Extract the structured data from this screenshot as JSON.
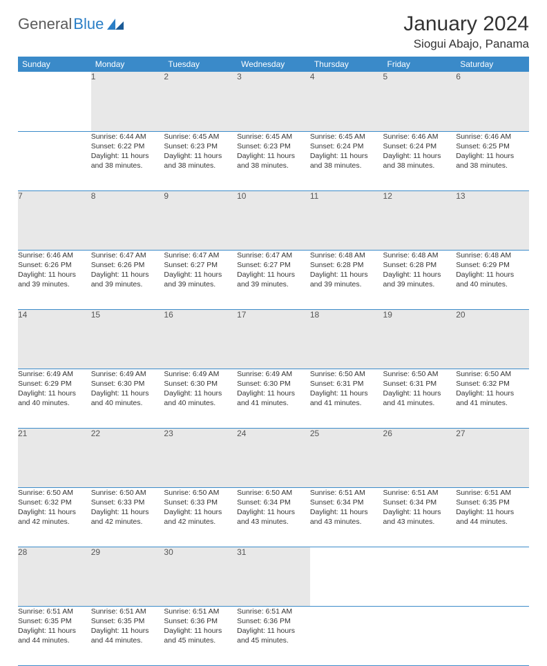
{
  "logo": {
    "text1": "General",
    "text2": "Blue"
  },
  "header": {
    "title": "January 2024",
    "location": "Siogui Abajo, Panama"
  },
  "colors": {
    "header_bg": "#3a8ac9",
    "header_text": "#ffffff",
    "daynum_bg": "#e8e8e8",
    "text": "#333333",
    "logo_gray": "#5a5a5a",
    "logo_blue": "#2a7ec6"
  },
  "weekdays": [
    "Sunday",
    "Monday",
    "Tuesday",
    "Wednesday",
    "Thursday",
    "Friday",
    "Saturday"
  ],
  "weeks": [
    {
      "days": [
        {
          "num": "",
          "lines": [
            "",
            "",
            "",
            ""
          ]
        },
        {
          "num": "1",
          "lines": [
            "Sunrise: 6:44 AM",
            "Sunset: 6:22 PM",
            "Daylight: 11 hours",
            "and 38 minutes."
          ]
        },
        {
          "num": "2",
          "lines": [
            "Sunrise: 6:45 AM",
            "Sunset: 6:23 PM",
            "Daylight: 11 hours",
            "and 38 minutes."
          ]
        },
        {
          "num": "3",
          "lines": [
            "Sunrise: 6:45 AM",
            "Sunset: 6:23 PM",
            "Daylight: 11 hours",
            "and 38 minutes."
          ]
        },
        {
          "num": "4",
          "lines": [
            "Sunrise: 6:45 AM",
            "Sunset: 6:24 PM",
            "Daylight: 11 hours",
            "and 38 minutes."
          ]
        },
        {
          "num": "5",
          "lines": [
            "Sunrise: 6:46 AM",
            "Sunset: 6:24 PM",
            "Daylight: 11 hours",
            "and 38 minutes."
          ]
        },
        {
          "num": "6",
          "lines": [
            "Sunrise: 6:46 AM",
            "Sunset: 6:25 PM",
            "Daylight: 11 hours",
            "and 38 minutes."
          ]
        }
      ]
    },
    {
      "days": [
        {
          "num": "7",
          "lines": [
            "Sunrise: 6:46 AM",
            "Sunset: 6:26 PM",
            "Daylight: 11 hours",
            "and 39 minutes."
          ]
        },
        {
          "num": "8",
          "lines": [
            "Sunrise: 6:47 AM",
            "Sunset: 6:26 PM",
            "Daylight: 11 hours",
            "and 39 minutes."
          ]
        },
        {
          "num": "9",
          "lines": [
            "Sunrise: 6:47 AM",
            "Sunset: 6:27 PM",
            "Daylight: 11 hours",
            "and 39 minutes."
          ]
        },
        {
          "num": "10",
          "lines": [
            "Sunrise: 6:47 AM",
            "Sunset: 6:27 PM",
            "Daylight: 11 hours",
            "and 39 minutes."
          ]
        },
        {
          "num": "11",
          "lines": [
            "Sunrise: 6:48 AM",
            "Sunset: 6:28 PM",
            "Daylight: 11 hours",
            "and 39 minutes."
          ]
        },
        {
          "num": "12",
          "lines": [
            "Sunrise: 6:48 AM",
            "Sunset: 6:28 PM",
            "Daylight: 11 hours",
            "and 39 minutes."
          ]
        },
        {
          "num": "13",
          "lines": [
            "Sunrise: 6:48 AM",
            "Sunset: 6:29 PM",
            "Daylight: 11 hours",
            "and 40 minutes."
          ]
        }
      ]
    },
    {
      "days": [
        {
          "num": "14",
          "lines": [
            "Sunrise: 6:49 AM",
            "Sunset: 6:29 PM",
            "Daylight: 11 hours",
            "and 40 minutes."
          ]
        },
        {
          "num": "15",
          "lines": [
            "Sunrise: 6:49 AM",
            "Sunset: 6:30 PM",
            "Daylight: 11 hours",
            "and 40 minutes."
          ]
        },
        {
          "num": "16",
          "lines": [
            "Sunrise: 6:49 AM",
            "Sunset: 6:30 PM",
            "Daylight: 11 hours",
            "and 40 minutes."
          ]
        },
        {
          "num": "17",
          "lines": [
            "Sunrise: 6:49 AM",
            "Sunset: 6:30 PM",
            "Daylight: 11 hours",
            "and 41 minutes."
          ]
        },
        {
          "num": "18",
          "lines": [
            "Sunrise: 6:50 AM",
            "Sunset: 6:31 PM",
            "Daylight: 11 hours",
            "and 41 minutes."
          ]
        },
        {
          "num": "19",
          "lines": [
            "Sunrise: 6:50 AM",
            "Sunset: 6:31 PM",
            "Daylight: 11 hours",
            "and 41 minutes."
          ]
        },
        {
          "num": "20",
          "lines": [
            "Sunrise: 6:50 AM",
            "Sunset: 6:32 PM",
            "Daylight: 11 hours",
            "and 41 minutes."
          ]
        }
      ]
    },
    {
      "days": [
        {
          "num": "21",
          "lines": [
            "Sunrise: 6:50 AM",
            "Sunset: 6:32 PM",
            "Daylight: 11 hours",
            "and 42 minutes."
          ]
        },
        {
          "num": "22",
          "lines": [
            "Sunrise: 6:50 AM",
            "Sunset: 6:33 PM",
            "Daylight: 11 hours",
            "and 42 minutes."
          ]
        },
        {
          "num": "23",
          "lines": [
            "Sunrise: 6:50 AM",
            "Sunset: 6:33 PM",
            "Daylight: 11 hours",
            "and 42 minutes."
          ]
        },
        {
          "num": "24",
          "lines": [
            "Sunrise: 6:50 AM",
            "Sunset: 6:34 PM",
            "Daylight: 11 hours",
            "and 43 minutes."
          ]
        },
        {
          "num": "25",
          "lines": [
            "Sunrise: 6:51 AM",
            "Sunset: 6:34 PM",
            "Daylight: 11 hours",
            "and 43 minutes."
          ]
        },
        {
          "num": "26",
          "lines": [
            "Sunrise: 6:51 AM",
            "Sunset: 6:34 PM",
            "Daylight: 11 hours",
            "and 43 minutes."
          ]
        },
        {
          "num": "27",
          "lines": [
            "Sunrise: 6:51 AM",
            "Sunset: 6:35 PM",
            "Daylight: 11 hours",
            "and 44 minutes."
          ]
        }
      ]
    },
    {
      "days": [
        {
          "num": "28",
          "lines": [
            "Sunrise: 6:51 AM",
            "Sunset: 6:35 PM",
            "Daylight: 11 hours",
            "and 44 minutes."
          ]
        },
        {
          "num": "29",
          "lines": [
            "Sunrise: 6:51 AM",
            "Sunset: 6:35 PM",
            "Daylight: 11 hours",
            "and 44 minutes."
          ]
        },
        {
          "num": "30",
          "lines": [
            "Sunrise: 6:51 AM",
            "Sunset: 6:36 PM",
            "Daylight: 11 hours",
            "and 45 minutes."
          ]
        },
        {
          "num": "31",
          "lines": [
            "Sunrise: 6:51 AM",
            "Sunset: 6:36 PM",
            "Daylight: 11 hours",
            "and 45 minutes."
          ]
        },
        {
          "num": "",
          "lines": [
            "",
            "",
            "",
            ""
          ]
        },
        {
          "num": "",
          "lines": [
            "",
            "",
            "",
            ""
          ]
        },
        {
          "num": "",
          "lines": [
            "",
            "",
            "",
            ""
          ]
        }
      ]
    }
  ]
}
